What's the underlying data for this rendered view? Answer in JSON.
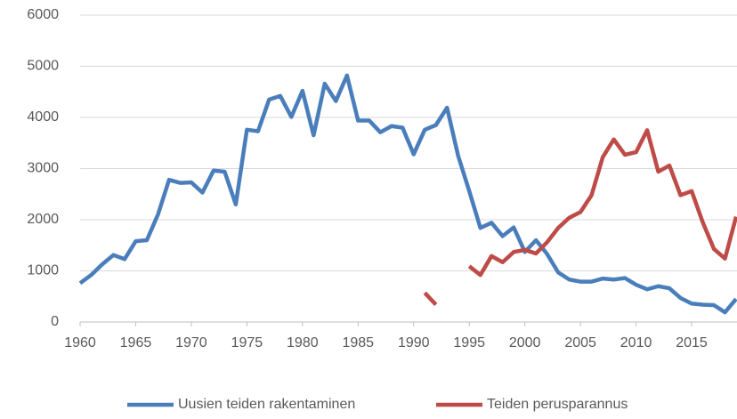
{
  "chart_data": {
    "type": "line",
    "x": [
      1960,
      1961,
      1962,
      1963,
      1964,
      1965,
      1966,
      1967,
      1968,
      1969,
      1970,
      1971,
      1972,
      1973,
      1974,
      1975,
      1976,
      1977,
      1978,
      1979,
      1980,
      1981,
      1982,
      1983,
      1984,
      1985,
      1986,
      1987,
      1988,
      1989,
      1990,
      1991,
      1992,
      1993,
      1994,
      1995,
      1996,
      1997,
      1998,
      1999,
      2000,
      2001,
      2002,
      2003,
      2004,
      2005,
      2006,
      2007,
      2008,
      2009,
      2010,
      2011,
      2012,
      2013,
      2014,
      2015,
      2016,
      2017,
      2018,
      2019
    ],
    "series": [
      {
        "name": "Uusien teiden rakentaminen",
        "color": "#4a7ebb",
        "values": [
          760,
          920,
          1130,
          1310,
          1230,
          1580,
          1600,
          2100,
          2780,
          2720,
          2730,
          2530,
          2960,
          2940,
          2300,
          3760,
          3730,
          4350,
          4420,
          4010,
          4520,
          3650,
          4660,
          4320,
          4820,
          3940,
          3940,
          3710,
          3830,
          3800,
          3280,
          3760,
          3850,
          4190,
          3250,
          2560,
          1840,
          1940,
          1680,
          1850,
          1370,
          1600,
          1330,
          970,
          830,
          790,
          790,
          850,
          830,
          860,
          730,
          640,
          700,
          660,
          470,
          360,
          340,
          330,
          190,
          450
        ]
      },
      {
        "name": "Teiden perusparannus",
        "color": "#be4b48",
        "values": [
          null,
          null,
          null,
          null,
          null,
          null,
          null,
          null,
          null,
          null,
          null,
          null,
          null,
          null,
          null,
          null,
          null,
          null,
          null,
          null,
          null,
          null,
          null,
          null,
          null,
          null,
          null,
          null,
          null,
          null,
          null,
          570,
          340,
          null,
          null,
          1090,
          920,
          1290,
          1170,
          1370,
          1410,
          1340,
          1560,
          1840,
          2040,
          2150,
          2480,
          3220,
          3570,
          3270,
          3320,
          3750,
          2940,
          3060,
          2480,
          2560,
          1950,
          1430,
          1240,
          2060
        ]
      }
    ],
    "xlim": [
      1960,
      2019
    ],
    "xticks": [
      1960,
      1965,
      1970,
      1975,
      1980,
      1985,
      1990,
      1995,
      2000,
      2005,
      2010,
      2015
    ],
    "ylim": [
      0,
      6000
    ],
    "yticks": [
      0,
      1000,
      2000,
      3000,
      4000,
      5000,
      6000
    ],
    "grid": true,
    "legend": "bottom"
  }
}
